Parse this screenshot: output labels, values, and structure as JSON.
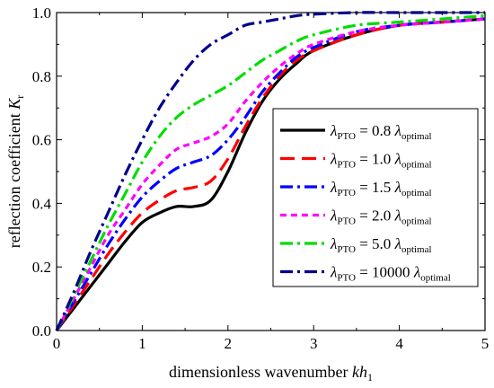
{
  "chart_data": {
    "type": "line",
    "xlabel": {
      "text": "dimensionless wavenumber ",
      "var": "kh",
      "sub": "1"
    },
    "ylabel": {
      "text": "reflection coefficient ",
      "var": "K",
      "sub": "r"
    },
    "xlim": [
      0,
      5
    ],
    "ylim": [
      0,
      1.0
    ],
    "xticks": [
      0,
      1,
      2,
      3,
      4,
      5
    ],
    "yticks": [
      0.0,
      0.2,
      0.4,
      0.6,
      0.8,
      1.0
    ],
    "xtick_labels": [
      "0",
      "1",
      "2",
      "3",
      "4",
      "5"
    ],
    "ytick_labels": [
      "0.0",
      "0.2",
      "0.4",
      "0.6",
      "0.8",
      "1.0"
    ],
    "grid": false,
    "legend_position": "center-right",
    "legend_symbol": "λ",
    "legend_sub": "PTO",
    "legend_sub2": "optimal",
    "series": [
      {
        "label": "= 0.8",
        "color": "#000000",
        "dash": "solid",
        "x": [
          0,
          0.2,
          0.4,
          0.6,
          0.8,
          1.0,
          1.2,
          1.4,
          1.6,
          1.8,
          2.0,
          2.2,
          2.4,
          2.6,
          2.8,
          3.0,
          3.5,
          4.0,
          4.5,
          5.0
        ],
        "y": [
          0,
          0.07,
          0.14,
          0.21,
          0.28,
          0.34,
          0.37,
          0.39,
          0.39,
          0.41,
          0.5,
          0.62,
          0.72,
          0.79,
          0.84,
          0.88,
          0.93,
          0.96,
          0.97,
          0.98
        ]
      },
      {
        "label": "= 1.0",
        "color": "#ff0000",
        "dash": "long-dash",
        "x": [
          0,
          0.2,
          0.4,
          0.6,
          0.8,
          1.0,
          1.2,
          1.4,
          1.6,
          1.8,
          2.0,
          2.2,
          2.4,
          2.6,
          2.8,
          3.0,
          3.5,
          4.0,
          4.5,
          5.0
        ],
        "y": [
          0,
          0.08,
          0.16,
          0.24,
          0.31,
          0.37,
          0.41,
          0.44,
          0.45,
          0.47,
          0.54,
          0.64,
          0.73,
          0.8,
          0.85,
          0.88,
          0.93,
          0.96,
          0.97,
          0.98
        ]
      },
      {
        "label": "= 1.5",
        "color": "#0000ff",
        "dash": "dash-dot",
        "x": [
          0,
          0.2,
          0.4,
          0.6,
          0.8,
          1.0,
          1.2,
          1.4,
          1.6,
          1.8,
          2.0,
          2.2,
          2.4,
          2.6,
          2.8,
          3.0,
          3.5,
          4.0,
          4.5,
          5.0
        ],
        "y": [
          0,
          0.09,
          0.18,
          0.27,
          0.35,
          0.42,
          0.47,
          0.51,
          0.53,
          0.55,
          0.6,
          0.67,
          0.75,
          0.81,
          0.86,
          0.89,
          0.94,
          0.96,
          0.97,
          0.98
        ]
      },
      {
        "label": "= 2.0",
        "color": "#ff00ff",
        "dash": "short-dash",
        "x": [
          0,
          0.2,
          0.4,
          0.6,
          0.8,
          1.0,
          1.2,
          1.4,
          1.6,
          1.8,
          2.0,
          2.2,
          2.4,
          2.6,
          2.8,
          3.0,
          3.5,
          4.0,
          4.5,
          5.0
        ],
        "y": [
          0,
          0.1,
          0.2,
          0.3,
          0.38,
          0.46,
          0.52,
          0.57,
          0.59,
          0.61,
          0.65,
          0.72,
          0.78,
          0.83,
          0.87,
          0.9,
          0.94,
          0.96,
          0.97,
          0.98
        ]
      },
      {
        "label": "= 5.0",
        "color": "#00dd00",
        "dash": "dash-dot",
        "x": [
          0,
          0.2,
          0.4,
          0.6,
          0.8,
          1.0,
          1.2,
          1.4,
          1.6,
          1.8,
          2.0,
          2.2,
          2.4,
          2.6,
          2.8,
          3.0,
          3.5,
          4.0,
          4.5,
          5.0
        ],
        "y": [
          0,
          0.11,
          0.22,
          0.33,
          0.43,
          0.53,
          0.61,
          0.67,
          0.71,
          0.74,
          0.77,
          0.81,
          0.85,
          0.88,
          0.91,
          0.93,
          0.96,
          0.97,
          0.98,
          0.99
        ]
      },
      {
        "label": "= 10000",
        "color": "#00008b",
        "dash": "dash-dot",
        "x": [
          0,
          0.2,
          0.4,
          0.6,
          0.8,
          1.0,
          1.2,
          1.4,
          1.6,
          1.8,
          2.0,
          2.2,
          2.4,
          2.6,
          2.8,
          3.0,
          3.5,
          4.0,
          4.5,
          5.0
        ],
        "y": [
          0,
          0.12,
          0.25,
          0.37,
          0.49,
          0.6,
          0.7,
          0.78,
          0.85,
          0.9,
          0.93,
          0.96,
          0.97,
          0.98,
          0.99,
          0.995,
          1.0,
          1.0,
          1.0,
          1.0
        ]
      }
    ]
  }
}
